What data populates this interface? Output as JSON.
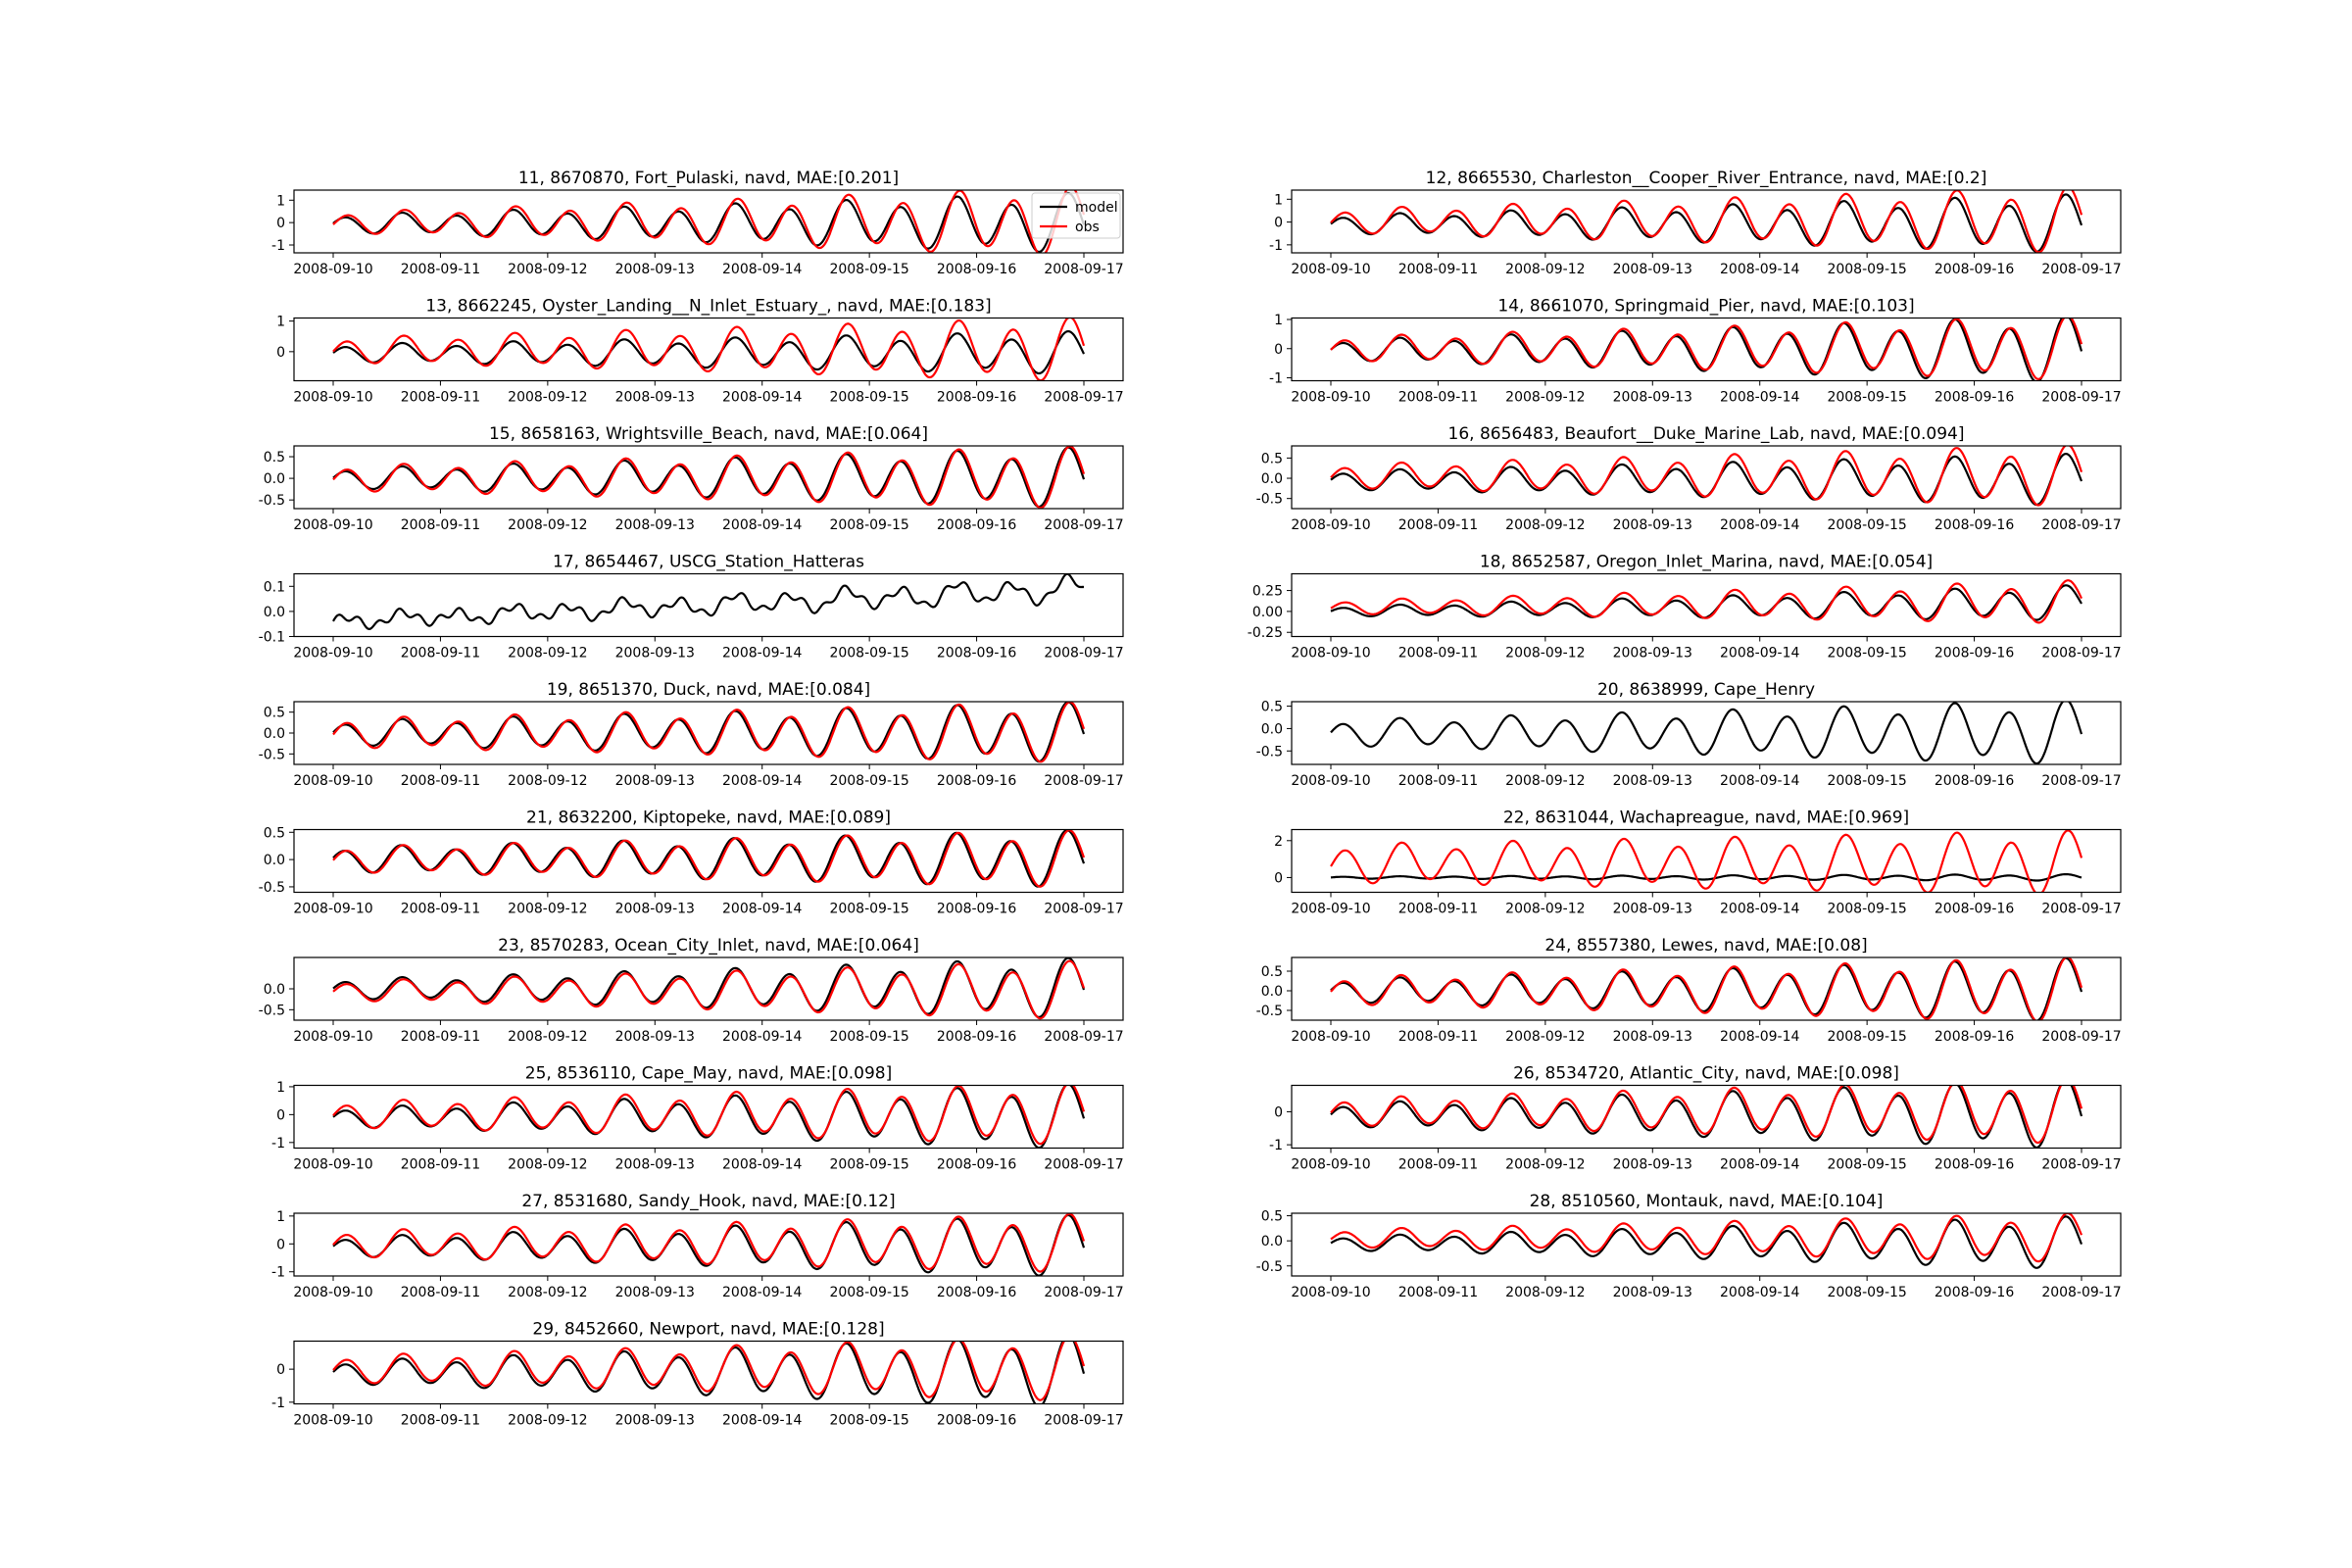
{
  "figure": {
    "x_ticks": [
      "2008-09-10",
      "2008-09-11",
      "2008-09-12",
      "2008-09-13",
      "2008-09-14",
      "2008-09-15",
      "2008-09-16",
      "2008-09-17"
    ],
    "legend": {
      "model": "model",
      "obs": "obs"
    },
    "colors": {
      "model": "#000000",
      "obs": "#ff0000"
    }
  },
  "chart_data": [
    {
      "type": "line",
      "title": "11, 8670870, Fort_Pulaski, navd, MAE:[0.201]",
      "ylim": [
        -1.35,
        1.45
      ],
      "yticks": [
        "1",
        "0",
        "-1"
      ],
      "ytick_values": [
        1,
        0,
        -1
      ],
      "legend": "upper right",
      "series": [
        {
          "name": "model",
          "amp": [
            0.35,
            1.15
          ],
          "mean": -0.05,
          "phase": 0.0
        },
        {
          "name": "obs",
          "amp": [
            0.4,
            1.35
          ],
          "mean": 0.0,
          "phase": -0.12
        }
      ]
    },
    {
      "type": "line",
      "title": "12, 8665530, Charleston__Cooper_River_Entrance, navd, MAE:[0.2]",
      "ylim": [
        -1.35,
        1.4
      ],
      "yticks": [
        "1",
        "0",
        "-1"
      ],
      "ytick_values": [
        1,
        0,
        -1
      ],
      "series": [
        {
          "name": "model",
          "amp": [
            0.35,
            1.1
          ],
          "mean": -0.1,
          "phase": 0.0
        },
        {
          "name": "obs",
          "amp": [
            0.45,
            1.25
          ],
          "mean": 0.05,
          "phase": -0.1
        }
      ]
    },
    {
      "type": "line",
      "title": "13, 8662245, Oyster_Landing__N_Inlet_Estuary_, navd, MAE:[0.183]",
      "ylim": [
        -0.95,
        1.1
      ],
      "yticks": [
        "1",
        "0"
      ],
      "ytick_values": [
        1,
        0
      ],
      "series": [
        {
          "name": "model",
          "amp": [
            0.25,
            0.6
          ],
          "mean": -0.05,
          "phase": 0.0
        },
        {
          "name": "obs",
          "amp": [
            0.35,
            0.9
          ],
          "mean": 0.05,
          "phase": -0.08
        }
      ]
    },
    {
      "type": "line",
      "title": "14, 8661070, Springmaid_Pier, navd, MAE:[0.103]",
      "ylim": [
        -1.1,
        1.05
      ],
      "yticks": [
        "1",
        "0",
        "-1"
      ],
      "ytick_values": [
        1,
        0,
        -1
      ],
      "series": [
        {
          "name": "model",
          "amp": [
            0.3,
            1.0
          ],
          "mean": -0.05,
          "phase": 0.0
        },
        {
          "name": "obs",
          "amp": [
            0.35,
            0.95
          ],
          "mean": 0.0,
          "phase": -0.08
        }
      ]
    },
    {
      "type": "line",
      "title": "15, 8658163, Wrightsville_Beach, navd, MAE:[0.064]",
      "ylim": [
        -0.7,
        0.75
      ],
      "yticks": [
        "0.5",
        "0.0",
        "-0.5"
      ],
      "ytick_values": [
        0.5,
        0,
        -0.5
      ],
      "series": [
        {
          "name": "model",
          "amp": [
            0.2,
            0.6
          ],
          "mean": 0.0,
          "phase": 0.0
        },
        {
          "name": "obs",
          "amp": [
            0.25,
            0.62
          ],
          "mean": 0.0,
          "phase": -0.08
        }
      ]
    },
    {
      "type": "line",
      "title": "16, 8656483, Beaufort__Duke_Marine_Lab, navd, MAE:[0.094]",
      "ylim": [
        -0.75,
        0.8
      ],
      "yticks": [
        "0.5",
        "0.0",
        "-0.5"
      ],
      "ytick_values": [
        0.5,
        0,
        -0.5
      ],
      "series": [
        {
          "name": "model",
          "amp": [
            0.2,
            0.55
          ],
          "mean": -0.05,
          "phase": 0.0
        },
        {
          "name": "obs",
          "amp": [
            0.25,
            0.65
          ],
          "mean": 0.05,
          "phase": -0.08
        }
      ]
    },
    {
      "type": "line",
      "title": "17, 8654467, USCG_Station_Hatteras",
      "ylim": [
        -0.1,
        0.15
      ],
      "yticks": [
        "0.1",
        "0.0",
        "-0.1"
      ],
      "ytick_values": [
        0.1,
        0,
        -0.1
      ],
      "series": [
        {
          "name": "model",
          "amp": [
            0.02,
            0.04
          ],
          "mean": 0.0,
          "phase": 0.0,
          "trend": [
            -0.04,
            0.09
          ],
          "wiggle": 0.015
        }
      ]
    },
    {
      "type": "line",
      "title": "18, 8652587, Oregon_Inlet_Marina, navd, MAE:[0.054]",
      "ylim": [
        -0.3,
        0.45
      ],
      "yticks": [
        "0.25",
        "0.00",
        "-0.25"
      ],
      "ytick_values": [
        0.25,
        0,
        -0.25
      ],
      "series": [
        {
          "name": "model",
          "amp": [
            0.05,
            0.18
          ],
          "mean": 0.05,
          "phase": 0.0,
          "trend": [
            -0.05,
            0.05
          ]
        },
        {
          "name": "obs",
          "amp": [
            0.07,
            0.22
          ],
          "mean": 0.08,
          "phase": -0.1,
          "trend": [
            -0.03,
            0.03
          ]
        }
      ]
    },
    {
      "type": "line",
      "title": "19, 8651370, Duck, navd, MAE:[0.084]",
      "ylim": [
        -0.75,
        0.75
      ],
      "yticks": [
        "0.5",
        "0.0",
        "-0.5"
      ],
      "ytick_values": [
        0.5,
        0,
        -0.5
      ],
      "series": [
        {
          "name": "model",
          "amp": [
            0.25,
            0.62
          ],
          "mean": 0.0,
          "phase": 0.0
        },
        {
          "name": "obs",
          "amp": [
            0.3,
            0.62
          ],
          "mean": 0.0,
          "phase": -0.08
        }
      ]
    },
    {
      "type": "line",
      "title": "20, 8638999, Cape_Henry",
      "ylim": [
        -0.8,
        0.6
      ],
      "yticks": [
        "0.5",
        "0.0",
        "-0.5"
      ],
      "ytick_values": [
        0.5,
        0,
        -0.5
      ],
      "series": [
        {
          "name": "model",
          "amp": [
            0.25,
            0.62
          ],
          "mean": -0.1,
          "phase": 0.0
        }
      ]
    },
    {
      "type": "line",
      "title": "21, 8632200, Kiptopeke, navd, MAE:[0.089]",
      "ylim": [
        -0.6,
        0.55
      ],
      "yticks": [
        "0.5",
        "0.0",
        "-0.5"
      ],
      "ytick_values": [
        0.5,
        0,
        -0.5
      ],
      "series": [
        {
          "name": "model",
          "amp": [
            0.2,
            0.45
          ],
          "mean": 0.0,
          "phase": 0.05
        },
        {
          "name": "obs",
          "amp": [
            0.2,
            0.45
          ],
          "mean": 0.0,
          "phase": -0.05
        }
      ]
    },
    {
      "type": "line",
      "title": "22, 8631044, Wachapreague, navd, MAE:[0.969]",
      "ylim": [
        -0.8,
        2.6
      ],
      "yticks": [
        "2",
        "0"
      ],
      "ytick_values": [
        2,
        0
      ],
      "series": [
        {
          "name": "model",
          "amp": [
            0.05,
            0.15
          ],
          "mean": 0.0,
          "phase": 0.0
        },
        {
          "name": "obs",
          "amp": [
            0.9,
            1.5
          ],
          "mean": 0.75,
          "phase": -0.1
        }
      ]
    },
    {
      "type": "line",
      "title": "23, 8570283, Ocean_City_Inlet, navd, MAE:[0.064]",
      "ylim": [
        -0.75,
        0.75
      ],
      "yticks": [
        "0.0",
        "-0.5"
      ],
      "ytick_values": [
        0,
        -0.5
      ],
      "series": [
        {
          "name": "model",
          "amp": [
            0.2,
            0.62
          ],
          "mean": 0.0,
          "phase": 0.0
        },
        {
          "name": "obs",
          "amp": [
            0.2,
            0.6
          ],
          "mean": -0.05,
          "phase": -0.06
        }
      ]
    },
    {
      "type": "line",
      "title": "24, 8557380, Lewes, navd, MAE:[0.08]",
      "ylim": [
        -0.75,
        0.85
      ],
      "yticks": [
        "0.5",
        "0.0",
        "-0.5"
      ],
      "ytick_values": [
        0.5,
        0,
        -0.5
      ],
      "series": [
        {
          "name": "model",
          "amp": [
            0.25,
            0.7
          ],
          "mean": 0.0,
          "phase": 0.0
        },
        {
          "name": "obs",
          "amp": [
            0.3,
            0.72
          ],
          "mean": 0.0,
          "phase": -0.06
        }
      ]
    },
    {
      "type": "line",
      "title": "25, 8536110, Cape_May, navd, MAE:[0.098]",
      "ylim": [
        -1.2,
        1.05
      ],
      "yticks": [
        "1",
        "0",
        "-1"
      ],
      "ytick_values": [
        1,
        0,
        -1
      ],
      "series": [
        {
          "name": "model",
          "amp": [
            0.3,
            1.0
          ],
          "mean": -0.1,
          "phase": 0.0
        },
        {
          "name": "obs",
          "amp": [
            0.4,
            0.95
          ],
          "mean": 0.0,
          "phase": -0.06
        }
      ]
    },
    {
      "type": "line",
      "title": "26, 8534720, Atlantic_City, navd, MAE:[0.098]",
      "ylim": [
        -1.1,
        0.8
      ],
      "yticks": [
        "0",
        "-1"
      ],
      "ytick_values": [
        0,
        -1
      ],
      "series": [
        {
          "name": "model",
          "amp": [
            0.3,
            0.9
          ],
          "mean": -0.1,
          "phase": 0.0
        },
        {
          "name": "obs",
          "amp": [
            0.35,
            0.85
          ],
          "mean": 0.0,
          "phase": -0.06
        }
      ]
    },
    {
      "type": "line",
      "title": "27, 8531680, Sandy_Hook, navd, MAE:[0.12]",
      "ylim": [
        -1.15,
        1.1
      ],
      "yticks": [
        "1",
        "0",
        "-1"
      ],
      "ytick_values": [
        1,
        0,
        -1
      ],
      "series": [
        {
          "name": "model",
          "amp": [
            0.3,
            0.95
          ],
          "mean": -0.1,
          "phase": 0.0
        },
        {
          "name": "obs",
          "amp": [
            0.4,
            0.9
          ],
          "mean": 0.0,
          "phase": -0.06
        }
      ]
    },
    {
      "type": "line",
      "title": "28, 8510560, Montauk, navd, MAE:[0.104]",
      "ylim": [
        -0.7,
        0.55
      ],
      "yticks": [
        "0.5",
        "0.0",
        "-0.5"
      ],
      "ytick_values": [
        0.5,
        0,
        -0.5
      ],
      "series": [
        {
          "name": "model",
          "amp": [
            0.12,
            0.45
          ],
          "mean": -0.05,
          "phase": 0.0
        },
        {
          "name": "obs",
          "amp": [
            0.15,
            0.42
          ],
          "mean": 0.05,
          "phase": -0.08
        }
      ]
    },
    {
      "type": "line",
      "title": "29, 8452660, Newport, navd, MAE:[0.128]",
      "ylim": [
        -1.05,
        0.85
      ],
      "yticks": [
        "0",
        "-1"
      ],
      "ytick_values": [
        0,
        -1
      ],
      "series": [
        {
          "name": "model",
          "amp": [
            0.3,
            0.95
          ],
          "mean": -0.1,
          "phase": 0.0
        },
        {
          "name": "obs",
          "amp": [
            0.35,
            0.85
          ],
          "mean": 0.0,
          "phase": -0.06
        }
      ]
    }
  ]
}
